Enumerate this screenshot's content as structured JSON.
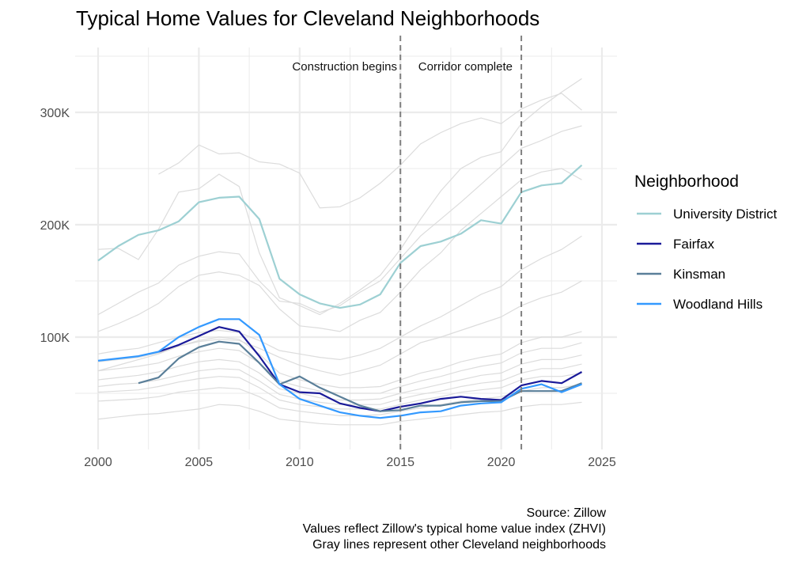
{
  "chart_data": {
    "type": "line",
    "title": "Typical Home Values for Cleveland Neighborhoods",
    "xlabel": "",
    "ylabel": "",
    "xlim": [
      1999,
      2025.5
    ],
    "ylim": [
      0,
      358
    ],
    "x_ticks": [
      2000,
      2005,
      2010,
      2015,
      2020,
      2025
    ],
    "x_tick_labels": [
      "2000",
      "2005",
      "2010",
      "2015",
      "2020",
      "2025"
    ],
    "y_ticks": [
      100,
      200,
      300
    ],
    "y_tick_labels": [
      "100K",
      "200K",
      "300K"
    ],
    "y_unit": "thousands of dollars",
    "grid": true,
    "legend": {
      "title": "Neighborhood",
      "placement": "right"
    },
    "years": [
      2000,
      2001,
      2002,
      2003,
      2004,
      2005,
      2006,
      2007,
      2008,
      2009,
      2010,
      2011,
      2012,
      2013,
      2014,
      2015,
      2016,
      2017,
      2018,
      2019,
      2020,
      2021,
      2022,
      2023,
      2024
    ],
    "series": [
      {
        "name": "University District",
        "color": "#9dd0d3",
        "values": [
          168,
          181,
          191,
          195,
          203,
          220,
          224,
          225,
          205,
          152,
          138,
          130,
          126,
          129,
          138,
          166,
          181,
          185,
          192,
          204,
          201,
          229,
          235,
          237,
          253
        ]
      },
      {
        "name": "Fairfax",
        "color": "#1a1a99",
        "values": [
          null,
          null,
          null,
          87,
          93,
          101,
          109,
          105,
          83,
          58,
          51,
          50,
          41,
          37,
          34,
          38,
          41,
          45,
          47,
          45,
          44,
          57,
          61,
          59,
          69
        ]
      },
      {
        "name": "Kinsman",
        "color": "#5a7f99",
        "values": [
          null,
          null,
          59,
          64,
          81,
          91,
          96,
          94,
          77,
          58,
          65,
          55,
          47,
          39,
          34,
          35,
          39,
          39,
          42,
          43,
          43,
          52,
          52,
          52,
          59
        ]
      },
      {
        "name": "Woodland Hills",
        "color": "#3399ff",
        "values": [
          79,
          81,
          83,
          87,
          100,
          109,
          116,
          116,
          102,
          58,
          45,
          39,
          33,
          30,
          28,
          30,
          33,
          34,
          39,
          41,
          42,
          54,
          58,
          51,
          58
        ]
      }
    ],
    "other_neighborhoods_color": "#dcdcdc",
    "other_neighborhoods": [
      [
        null,
        null,
        null,
        245,
        255,
        271,
        263,
        264,
        256,
        254,
        246,
        215,
        216,
        224,
        237,
        253,
        272,
        282,
        290,
        295,
        290,
        303,
        311,
        317,
        302
      ],
      [
        178,
        179,
        169,
        196,
        229,
        232,
        245,
        234,
        175,
        135,
        128,
        120,
        130,
        142,
        155,
        178,
        205,
        230,
        250,
        260,
        265,
        290,
        305,
        318,
        330
      ],
      [
        120,
        130,
        140,
        148,
        164,
        172,
        176,
        174,
        150,
        132,
        130,
        122,
        128,
        140,
        150,
        170,
        190,
        205,
        220,
        236,
        252,
        268,
        275,
        283,
        288
      ],
      [
        105,
        112,
        120,
        130,
        145,
        155,
        158,
        155,
        146,
        125,
        110,
        108,
        105,
        115,
        122,
        140,
        160,
        175,
        195,
        210,
        225,
        240,
        247,
        250,
        240
      ],
      [
        85,
        88,
        90,
        95,
        100,
        104,
        106,
        104,
        97,
        88,
        85,
        82,
        80,
        84,
        90,
        100,
        110,
        118,
        128,
        138,
        145,
        160,
        170,
        178,
        190
      ],
      [
        70,
        75,
        80,
        85,
        92,
        96,
        98,
        97,
        90,
        82,
        75,
        70,
        66,
        70,
        75,
        85,
        95,
        100,
        106,
        112,
        118,
        128,
        135,
        140,
        150
      ],
      [
        78,
        80,
        82,
        86,
        92,
        97,
        100,
        98,
        85,
        68,
        62,
        58,
        55,
        55,
        56,
        62,
        68,
        72,
        78,
        82,
        85,
        95,
        100,
        100,
        105
      ],
      [
        70,
        72,
        74,
        77,
        83,
        87,
        90,
        88,
        77,
        61,
        56,
        52,
        50,
        50,
        50,
        56,
        61,
        65,
        70,
        74,
        77,
        86,
        90,
        90,
        95
      ],
      [
        62,
        64,
        66,
        69,
        74,
        78,
        80,
        78,
        68,
        54,
        50,
        46,
        44,
        44,
        45,
        50,
        54,
        58,
        62,
        66,
        68,
        76,
        80,
        80,
        84
      ],
      [
        56,
        58,
        59,
        62,
        66,
        70,
        72,
        71,
        61,
        49,
        45,
        42,
        40,
        40,
        40,
        45,
        49,
        52,
        56,
        59,
        61,
        68,
        72,
        72,
        76
      ],
      [
        51,
        52,
        53,
        56,
        60,
        63,
        65,
        64,
        55,
        44,
        40,
        38,
        36,
        36,
        36,
        40,
        44,
        47,
        51,
        53,
        55,
        62,
        65,
        65,
        68
      ],
      [
        43,
        44,
        45,
        47,
        51,
        53,
        55,
        54,
        47,
        37,
        34,
        32,
        30,
        30,
        31,
        34,
        37,
        40,
        43,
        45,
        47,
        52,
        55,
        55,
        58
      ],
      [
        27,
        29,
        31,
        32,
        34,
        36,
        40,
        39,
        34,
        27,
        25,
        23,
        22,
        22,
        22,
        25,
        27,
        29,
        31,
        33,
        34,
        38,
        40,
        40,
        42
      ]
    ],
    "annotations": [
      {
        "x": 2015,
        "text": "Construction begins"
      },
      {
        "x": 2021,
        "text": "Corridor complete"
      }
    ],
    "caption": [
      "Source: Zillow",
      "Values reflect Zillow's typical home value index (ZHVI)",
      "Gray lines represent other Cleveland neighborhoods"
    ]
  }
}
